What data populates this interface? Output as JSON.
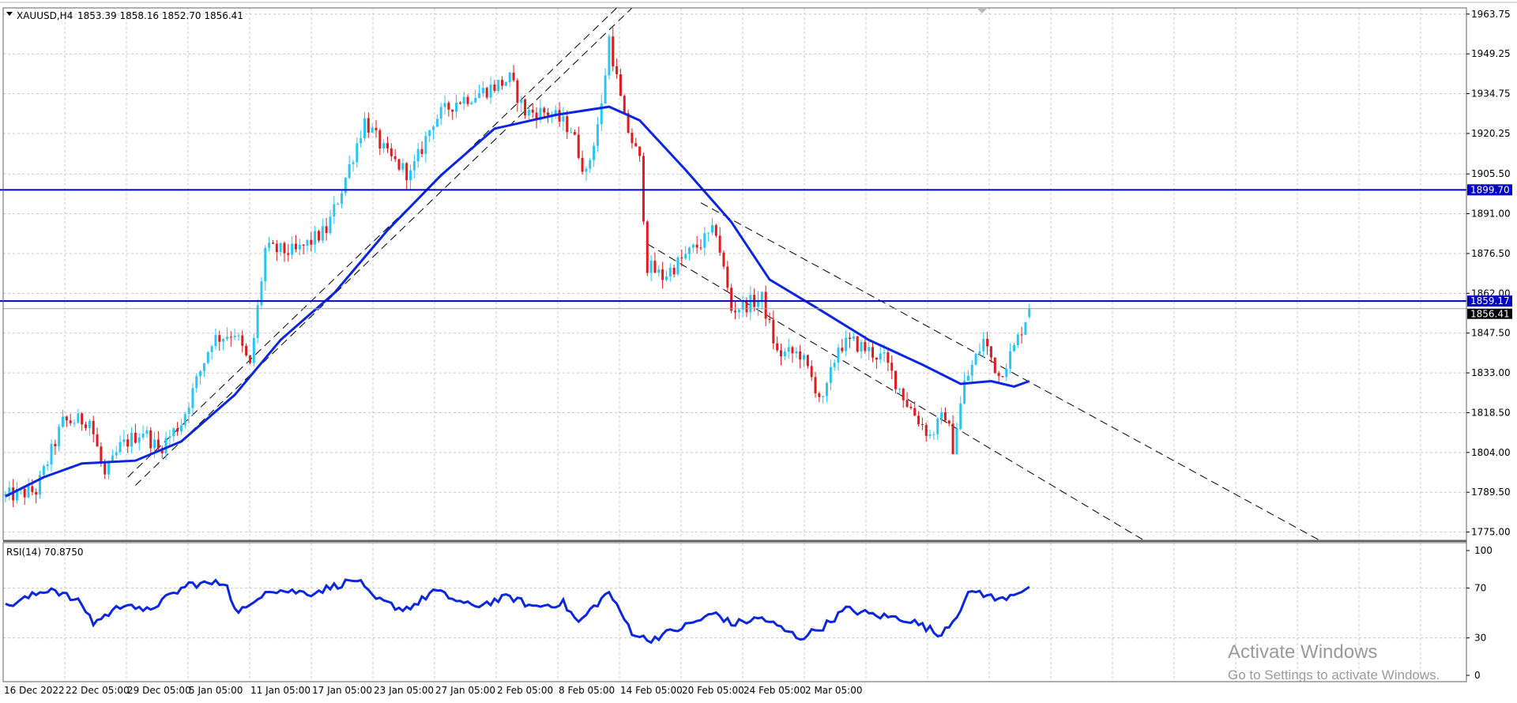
{
  "symbol_info": {
    "symbol": "XAUUSD,H4",
    "ohlc": "1853.39 1858.16 1852.70 1856.41"
  },
  "indicator": {
    "label": "RSI(14) 70.8750"
  },
  "price_axis": {
    "ticks": [
      "1963.75",
      "1949.25",
      "1934.75",
      "1920.25",
      "1905.50",
      "1891.00",
      "1876.50",
      "1862.00",
      "1847.50",
      "1833.00",
      "1818.50",
      "1804.00",
      "1789.50",
      "1775.00"
    ],
    "range": [
      1772,
      1966
    ]
  },
  "rsi_axis": {
    "ticks": [
      "100",
      "70",
      "30",
      "0"
    ],
    "range": [
      0,
      100
    ]
  },
  "horizontal_lines": [
    {
      "label": "1899.70",
      "price": 1899.7
    },
    {
      "label": "1859.17",
      "price": 1859.17
    }
  ],
  "current_price_label": "1856.41",
  "time_axis": {
    "labels": [
      "16 Dec 2022",
      "22 Dec 05:00",
      "29 Dec 05:00",
      "5 Jan 05:00",
      "11 Jan 05:00",
      "17 Jan 05:00",
      "23 Jan 05:00",
      "27 Jan 05:00",
      "2 Feb 05:00",
      "8 Feb 05:00",
      "14 Feb 05:00",
      "20 Feb 05:00",
      "24 Feb 05:00",
      "2 Mar 05:00"
    ]
  },
  "watermark": {
    "title": "Activate Windows",
    "subtitle": "Go to Settings to activate Windows."
  },
  "colors": {
    "bull": "#26c6f9",
    "bear": "#e01b1b",
    "ma": "#0b26e0",
    "rsi": "#0b26e0",
    "hline": "#0000c8",
    "grid": "#c8c8c8",
    "channel": "#000000",
    "price_tag_bg": "#0000c8"
  },
  "chart_data": {
    "type": "candlestick",
    "symbol": "XAUUSD",
    "timeframe": "H4",
    "last_ohlc": {
      "open": 1853.39,
      "high": 1858.16,
      "low": 1852.7,
      "close": 1856.41
    },
    "price_path": [
      {
        "bar": 0,
        "price": 1788
      },
      {
        "bar": 8,
        "price": 1790
      },
      {
        "bar": 15,
        "price": 1815
      },
      {
        "bar": 22,
        "price": 1816
      },
      {
        "bar": 26,
        "price": 1795
      },
      {
        "bar": 30,
        "price": 1806
      },
      {
        "bar": 36,
        "price": 1812
      },
      {
        "bar": 40,
        "price": 1805
      },
      {
        "bar": 46,
        "price": 1815
      },
      {
        "bar": 54,
        "price": 1845
      },
      {
        "bar": 60,
        "price": 1848
      },
      {
        "bar": 64,
        "price": 1835
      },
      {
        "bar": 68,
        "price": 1878
      },
      {
        "bar": 76,
        "price": 1877
      },
      {
        "bar": 84,
        "price": 1885
      },
      {
        "bar": 88,
        "price": 1900
      },
      {
        "bar": 94,
        "price": 1925
      },
      {
        "bar": 100,
        "price": 1912
      },
      {
        "bar": 106,
        "price": 1905
      },
      {
        "bar": 112,
        "price": 1925
      },
      {
        "bar": 118,
        "price": 1932
      },
      {
        "bar": 124,
        "price": 1935
      },
      {
        "bar": 132,
        "price": 1940
      },
      {
        "bar": 136,
        "price": 1928
      },
      {
        "bar": 142,
        "price": 1928
      },
      {
        "bar": 148,
        "price": 1922
      },
      {
        "bar": 152,
        "price": 1905
      },
      {
        "bar": 156,
        "price": 1930
      },
      {
        "bar": 158,
        "price": 1955
      },
      {
        "bar": 162,
        "price": 1925
      },
      {
        "bar": 166,
        "price": 1910
      },
      {
        "bar": 168,
        "price": 1872
      },
      {
        "bar": 172,
        "price": 1868
      },
      {
        "bar": 180,
        "price": 1878
      },
      {
        "bar": 186,
        "price": 1885
      },
      {
        "bar": 190,
        "price": 1856
      },
      {
        "bar": 198,
        "price": 1860
      },
      {
        "bar": 202,
        "price": 1840
      },
      {
        "bar": 208,
        "price": 1840
      },
      {
        "bar": 214,
        "price": 1822
      },
      {
        "bar": 218,
        "price": 1843
      },
      {
        "bar": 222,
        "price": 1844
      },
      {
        "bar": 230,
        "price": 1838
      },
      {
        "bar": 236,
        "price": 1822
      },
      {
        "bar": 242,
        "price": 1810
      },
      {
        "bar": 246,
        "price": 1818
      },
      {
        "bar": 248,
        "price": 1806
      },
      {
        "bar": 251,
        "price": 1829
      },
      {
        "bar": 256,
        "price": 1845
      },
      {
        "bar": 260,
        "price": 1832
      },
      {
        "bar": 264,
        "price": 1842
      },
      {
        "bar": 268,
        "price": 1856.4
      }
    ],
    "moving_average": [
      {
        "bar": 0,
        "price": 1788
      },
      {
        "bar": 10,
        "price": 1795
      },
      {
        "bar": 20,
        "price": 1800
      },
      {
        "bar": 34,
        "price": 1801
      },
      {
        "bar": 46,
        "price": 1808
      },
      {
        "bar": 60,
        "price": 1825
      },
      {
        "bar": 72,
        "price": 1845
      },
      {
        "bar": 86,
        "price": 1862
      },
      {
        "bar": 100,
        "price": 1885
      },
      {
        "bar": 114,
        "price": 1905
      },
      {
        "bar": 128,
        "price": 1922
      },
      {
        "bar": 144,
        "price": 1927
      },
      {
        "bar": 158,
        "price": 1930
      },
      {
        "bar": 166,
        "price": 1925
      },
      {
        "bar": 178,
        "price": 1907
      },
      {
        "bar": 190,
        "price": 1888
      },
      {
        "bar": 200,
        "price": 1867
      },
      {
        "bar": 212,
        "price": 1857
      },
      {
        "bar": 226,
        "price": 1845
      },
      {
        "bar": 240,
        "price": 1836
      },
      {
        "bar": 250,
        "price": 1829
      },
      {
        "bar": 258,
        "price": 1830
      },
      {
        "bar": 264,
        "price": 1828
      },
      {
        "bar": 268,
        "price": 1830
      }
    ],
    "rsi_path": [
      {
        "bar": 0,
        "value": 55
      },
      {
        "bar": 12,
        "value": 70
      },
      {
        "bar": 20,
        "value": 57
      },
      {
        "bar": 23,
        "value": 42
      },
      {
        "bar": 32,
        "value": 59
      },
      {
        "bar": 36,
        "value": 50
      },
      {
        "bar": 48,
        "value": 73
      },
      {
        "bar": 58,
        "value": 74
      },
      {
        "bar": 60,
        "value": 52
      },
      {
        "bar": 64,
        "value": 54
      },
      {
        "bar": 68,
        "value": 69
      },
      {
        "bar": 80,
        "value": 66
      },
      {
        "bar": 92,
        "value": 77
      },
      {
        "bar": 96,
        "value": 62
      },
      {
        "bar": 104,
        "value": 53
      },
      {
        "bar": 108,
        "value": 58
      },
      {
        "bar": 112,
        "value": 68
      },
      {
        "bar": 122,
        "value": 55
      },
      {
        "bar": 132,
        "value": 63
      },
      {
        "bar": 138,
        "value": 55
      },
      {
        "bar": 146,
        "value": 58
      },
      {
        "bar": 150,
        "value": 42
      },
      {
        "bar": 154,
        "value": 55
      },
      {
        "bar": 158,
        "value": 67
      },
      {
        "bar": 160,
        "value": 55
      },
      {
        "bar": 164,
        "value": 35
      },
      {
        "bar": 168,
        "value": 28
      },
      {
        "bar": 176,
        "value": 37
      },
      {
        "bar": 186,
        "value": 50
      },
      {
        "bar": 190,
        "value": 41
      },
      {
        "bar": 198,
        "value": 46
      },
      {
        "bar": 204,
        "value": 36
      },
      {
        "bar": 208,
        "value": 30
      },
      {
        "bar": 214,
        "value": 39
      },
      {
        "bar": 220,
        "value": 53
      },
      {
        "bar": 228,
        "value": 48
      },
      {
        "bar": 236,
        "value": 45
      },
      {
        "bar": 242,
        "value": 37
      },
      {
        "bar": 244,
        "value": 32
      },
      {
        "bar": 248,
        "value": 44
      },
      {
        "bar": 252,
        "value": 64
      },
      {
        "bar": 254,
        "value": 68
      },
      {
        "bar": 260,
        "value": 60
      },
      {
        "bar": 264,
        "value": 66
      },
      {
        "bar": 268,
        "value": 70.875
      }
    ],
    "channel_lines": [
      {
        "from": {
          "bar": 32,
          "price": 1795
        },
        "to": {
          "bar": 160,
          "price": 1966
        }
      },
      {
        "from": {
          "bar": 34,
          "price": 1792
        },
        "to": {
          "bar": 164,
          "price": 1966
        }
      },
      {
        "from": {
          "bar": 168,
          "price": 1880
        },
        "to": {
          "bar": 298,
          "price": 1772
        }
      },
      {
        "from": {
          "bar": 182,
          "price": 1895
        },
        "to": {
          "bar": 344,
          "price": 1772
        }
      }
    ]
  }
}
